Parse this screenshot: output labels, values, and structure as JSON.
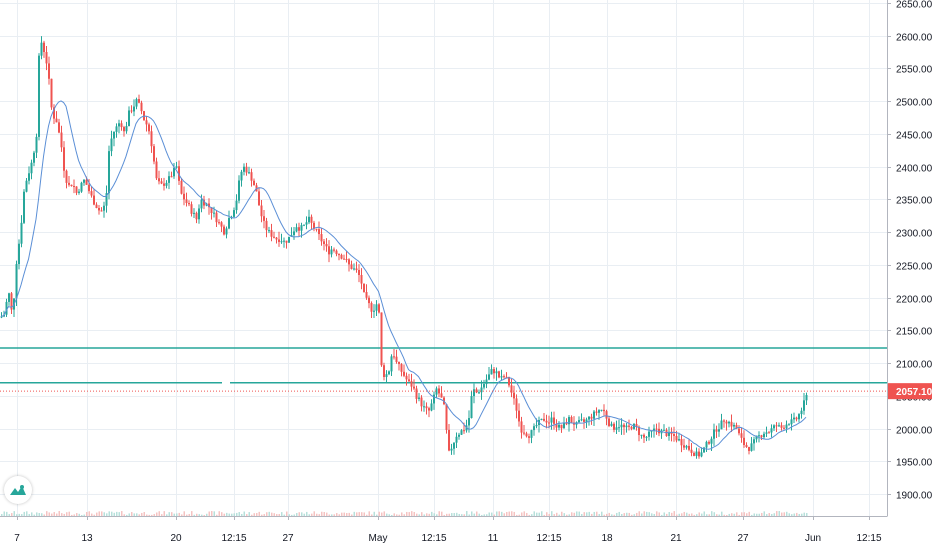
{
  "chart_data": {
    "type": "candlestick",
    "colors": {
      "up": "#26a69a",
      "down": "#ef5350",
      "ma": "#5b8fd6",
      "grid": "#e9eef3",
      "hline": "#26a69a",
      "price_line": "#ef5350"
    },
    "y_axis": {
      "ylim": [
        1865,
        2660
      ],
      "ticks": [
        1900,
        1950,
        2000,
        2050,
        2100,
        2150,
        2200,
        2250,
        2300,
        2350,
        2400,
        2450,
        2500,
        2550,
        2600,
        2650
      ],
      "tick_labels": [
        "1900.00",
        "1950.00",
        "2000.00",
        "2050.00",
        "2100.00",
        "2150.00",
        "2200.00",
        "2250.00",
        "2300.00",
        "2350.00",
        "2400.00",
        "2450.00",
        "2500.00",
        "2550.00",
        "2600.00",
        "2650.00"
      ]
    },
    "x_axis": {
      "ticks": [
        "7",
        "13",
        "20",
        "12:15",
        "27",
        "May",
        "12:15",
        "11",
        "12:15",
        "18",
        "21",
        "27",
        "Jun",
        "12:15"
      ]
    },
    "current_price": {
      "value": 2057.1,
      "label": "2057.10"
    },
    "horizontal_lines": [
      {
        "value": 2123
      },
      {
        "value": 2070
      }
    ],
    "close_path": [
      [
        0,
        2170
      ],
      [
        4,
        2175
      ],
      [
        8,
        2210
      ],
      [
        12,
        2170
      ],
      [
        16,
        2255
      ],
      [
        20,
        2300
      ],
      [
        24,
        2370
      ],
      [
        28,
        2390
      ],
      [
        32,
        2410
      ],
      [
        36,
        2450
      ],
      [
        38,
        2560
      ],
      [
        40,
        2580
      ],
      [
        42,
        2600
      ],
      [
        44,
        2570
      ],
      [
        46,
        2560
      ],
      [
        48,
        2540
      ],
      [
        50,
        2500
      ],
      [
        52,
        2480
      ],
      [
        56,
        2470
      ],
      [
        60,
        2440
      ],
      [
        62,
        2420
      ],
      [
        64,
        2390
      ],
      [
        66,
        2380
      ],
      [
        68,
        2370
      ],
      [
        72,
        2375
      ],
      [
        76,
        2360
      ],
      [
        80,
        2370
      ],
      [
        84,
        2380
      ],
      [
        88,
        2365
      ],
      [
        92,
        2350
      ],
      [
        96,
        2340
      ],
      [
        100,
        2330
      ],
      [
        104,
        2340
      ],
      [
        106,
        2360
      ],
      [
        108,
        2420
      ],
      [
        112,
        2450
      ],
      [
        116,
        2460
      ],
      [
        120,
        2470
      ],
      [
        124,
        2450
      ],
      [
        128,
        2480
      ],
      [
        132,
        2490
      ],
      [
        136,
        2500
      ],
      [
        140,
        2490
      ],
      [
        144,
        2470
      ],
      [
        148,
        2460
      ],
      [
        150,
        2440
      ],
      [
        152,
        2430
      ],
      [
        154,
        2400
      ],
      [
        156,
        2380
      ],
      [
        160,
        2370
      ],
      [
        164,
        2375
      ],
      [
        168,
        2380
      ],
      [
        172,
        2390
      ],
      [
        176,
        2400
      ],
      [
        180,
        2360
      ],
      [
        184,
        2350
      ],
      [
        188,
        2340
      ],
      [
        192,
        2330
      ],
      [
        196,
        2320
      ],
      [
        200,
        2350
      ],
      [
        204,
        2345
      ],
      [
        208,
        2340
      ],
      [
        212,
        2330
      ],
      [
        216,
        2320
      ],
      [
        220,
        2310
      ],
      [
        224,
        2300
      ],
      [
        228,
        2320
      ],
      [
        232,
        2330
      ],
      [
        236,
        2350
      ],
      [
        240,
        2390
      ],
      [
        244,
        2400
      ],
      [
        248,
        2390
      ],
      [
        252,
        2380
      ],
      [
        256,
        2360
      ],
      [
        260,
        2330
      ],
      [
        264,
        2310
      ],
      [
        268,
        2300
      ],
      [
        272,
        2295
      ],
      [
        276,
        2290
      ],
      [
        280,
        2290
      ],
      [
        284,
        2285
      ],
      [
        288,
        2290
      ],
      [
        292,
        2300
      ],
      [
        296,
        2310
      ],
      [
        300,
        2305
      ],
      [
        304,
        2310
      ],
      [
        308,
        2320
      ],
      [
        312,
        2310
      ],
      [
        316,
        2300
      ],
      [
        320,
        2290
      ],
      [
        324,
        2280
      ],
      [
        328,
        2270
      ],
      [
        332,
        2275
      ],
      [
        336,
        2270
      ],
      [
        340,
        2265
      ],
      [
        344,
        2260
      ],
      [
        348,
        2250
      ],
      [
        352,
        2245
      ],
      [
        356,
        2240
      ],
      [
        360,
        2230
      ],
      [
        364,
        2200
      ],
      [
        368,
        2190
      ],
      [
        372,
        2180
      ],
      [
        376,
        2190
      ],
      [
        378,
        2200
      ],
      [
        380,
        2100
      ],
      [
        384,
        2080
      ],
      [
        388,
        2085
      ],
      [
        392,
        2120
      ],
      [
        396,
        2100
      ],
      [
        400,
        2090
      ],
      [
        404,
        2080
      ],
      [
        408,
        2070
      ],
      [
        412,
        2065
      ],
      [
        416,
        2050
      ],
      [
        420,
        2040
      ],
      [
        424,
        2030
      ],
      [
        428,
        2025
      ],
      [
        432,
        2040
      ],
      [
        436,
        2060
      ],
      [
        440,
        2050
      ],
      [
        444,
        2030
      ],
      [
        448,
        1960
      ],
      [
        452,
        1975
      ],
      [
        456,
        1990
      ],
      [
        460,
        1995
      ],
      [
        464,
        2000
      ],
      [
        468,
        2010
      ],
      [
        472,
        2060
      ],
      [
        476,
        2055
      ],
      [
        480,
        2060
      ],
      [
        484,
        2070
      ],
      [
        488,
        2080
      ],
      [
        492,
        2090
      ],
      [
        496,
        2085
      ],
      [
        500,
        2075
      ],
      [
        504,
        2080
      ],
      [
        508,
        2070
      ],
      [
        512,
        2050
      ],
      [
        516,
        2030
      ],
      [
        520,
        2000
      ],
      [
        524,
        1995
      ],
      [
        528,
        1990
      ],
      [
        532,
        1995
      ],
      [
        536,
        2005
      ],
      [
        540,
        2010
      ],
      [
        544,
        2015
      ],
      [
        548,
        2010
      ],
      [
        552,
        2015
      ],
      [
        556,
        2005
      ],
      [
        560,
        2000
      ],
      [
        564,
        2005
      ],
      [
        568,
        2015
      ],
      [
        572,
        2010
      ],
      [
        576,
        2005
      ],
      [
        580,
        2010
      ],
      [
        584,
        2010
      ],
      [
        588,
        2015
      ],
      [
        592,
        2020
      ],
      [
        596,
        2025
      ],
      [
        600,
        2030
      ],
      [
        604,
        2025
      ],
      [
        608,
        2010
      ],
      [
        612,
        2000
      ],
      [
        616,
        2005
      ],
      [
        620,
        2005
      ],
      [
        624,
        2000
      ],
      [
        628,
        2000
      ],
      [
        632,
        2005
      ],
      [
        636,
        2000
      ],
      [
        640,
        1990
      ],
      [
        644,
        1985
      ],
      [
        648,
        1990
      ],
      [
        652,
        1995
      ],
      [
        656,
        2000
      ],
      [
        660,
        1995
      ],
      [
        664,
        1995
      ],
      [
        668,
        1990
      ],
      [
        672,
        1990
      ],
      [
        676,
        1985
      ],
      [
        680,
        1980
      ],
      [
        684,
        1975
      ],
      [
        688,
        1970
      ],
      [
        692,
        1965
      ],
      [
        696,
        1960
      ],
      [
        700,
        1960
      ],
      [
        704,
        1970
      ],
      [
        708,
        1980
      ],
      [
        712,
        1990
      ],
      [
        716,
        2000
      ],
      [
        720,
        2005
      ],
      [
        724,
        2015
      ],
      [
        728,
        2010
      ],
      [
        732,
        2005
      ],
      [
        736,
        2000
      ],
      [
        740,
        1985
      ],
      [
        744,
        1975
      ],
      [
        748,
        1970
      ],
      [
        752,
        1975
      ],
      [
        756,
        1985
      ],
      [
        760,
        1990
      ],
      [
        764,
        1995
      ],
      [
        768,
        1995
      ],
      [
        772,
        2000
      ],
      [
        776,
        2005
      ],
      [
        780,
        2000
      ],
      [
        784,
        2005
      ],
      [
        788,
        2010
      ],
      [
        792,
        2010
      ],
      [
        796,
        2015
      ],
      [
        800,
        2025
      ],
      [
        804,
        2040
      ],
      [
        808,
        2057
      ]
    ]
  }
}
